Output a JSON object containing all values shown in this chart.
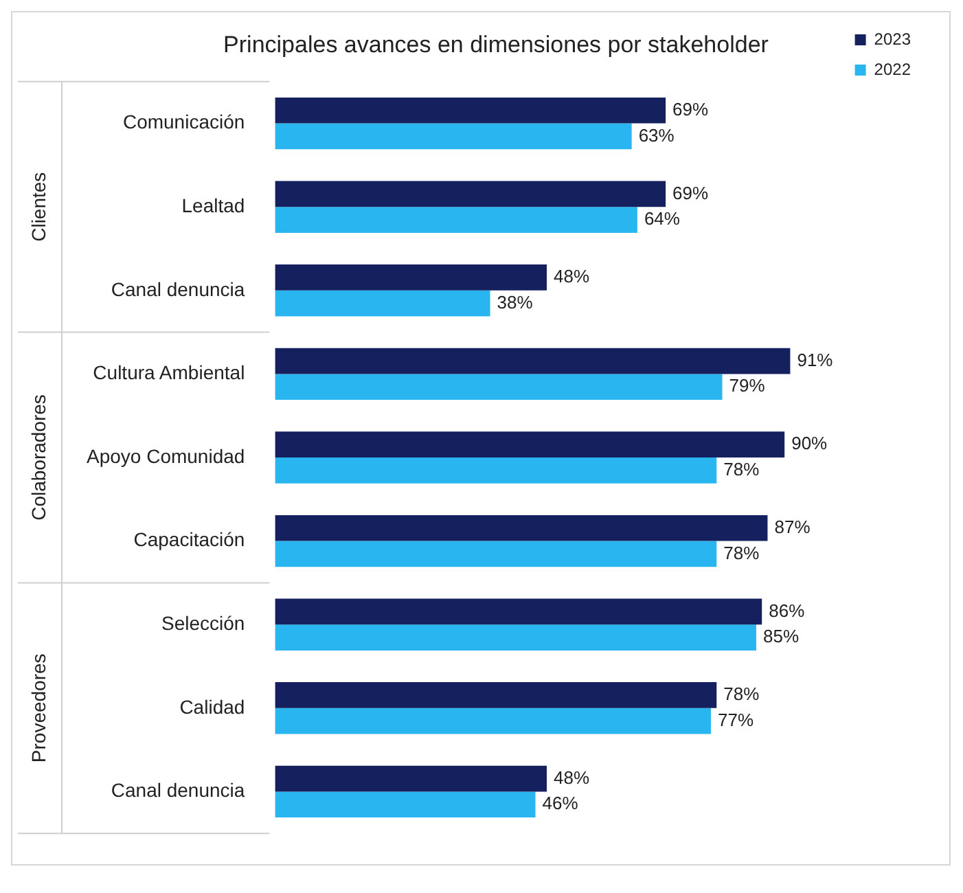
{
  "chart_data": {
    "type": "bar",
    "orientation": "horizontal",
    "title": "Principales avances en dimensiones por stakeholder",
    "categories": [
      "Comunicación",
      "Lealtad",
      "Canal denuncia",
      "Cultura Ambiental",
      "Apoyo Comunidad",
      "Capacitación",
      "Selección",
      "Calidad",
      "Canal denuncia"
    ],
    "series": [
      {
        "name": "2023",
        "color": "#14215e",
        "values": [
          69,
          69,
          48,
          91,
          90,
          87,
          86,
          78,
          48
        ],
        "value_labels": [
          "69%",
          "69%",
          "48%",
          "91%",
          "90%",
          "87%",
          "86%",
          "78%",
          "48%"
        ]
      },
      {
        "name": "2022",
        "color": "#29b5ef",
        "values": [
          63,
          64,
          38,
          79,
          78,
          78,
          85,
          77,
          46
        ],
        "value_labels": [
          "63%",
          "64%",
          "38%",
          "79%",
          "78%",
          "78%",
          "85%",
          "77%",
          "46%"
        ]
      }
    ],
    "annotations": [
      "Clientes",
      "Colaboradores",
      "Proveedores"
    ],
    "legend": "top right"
  }
}
